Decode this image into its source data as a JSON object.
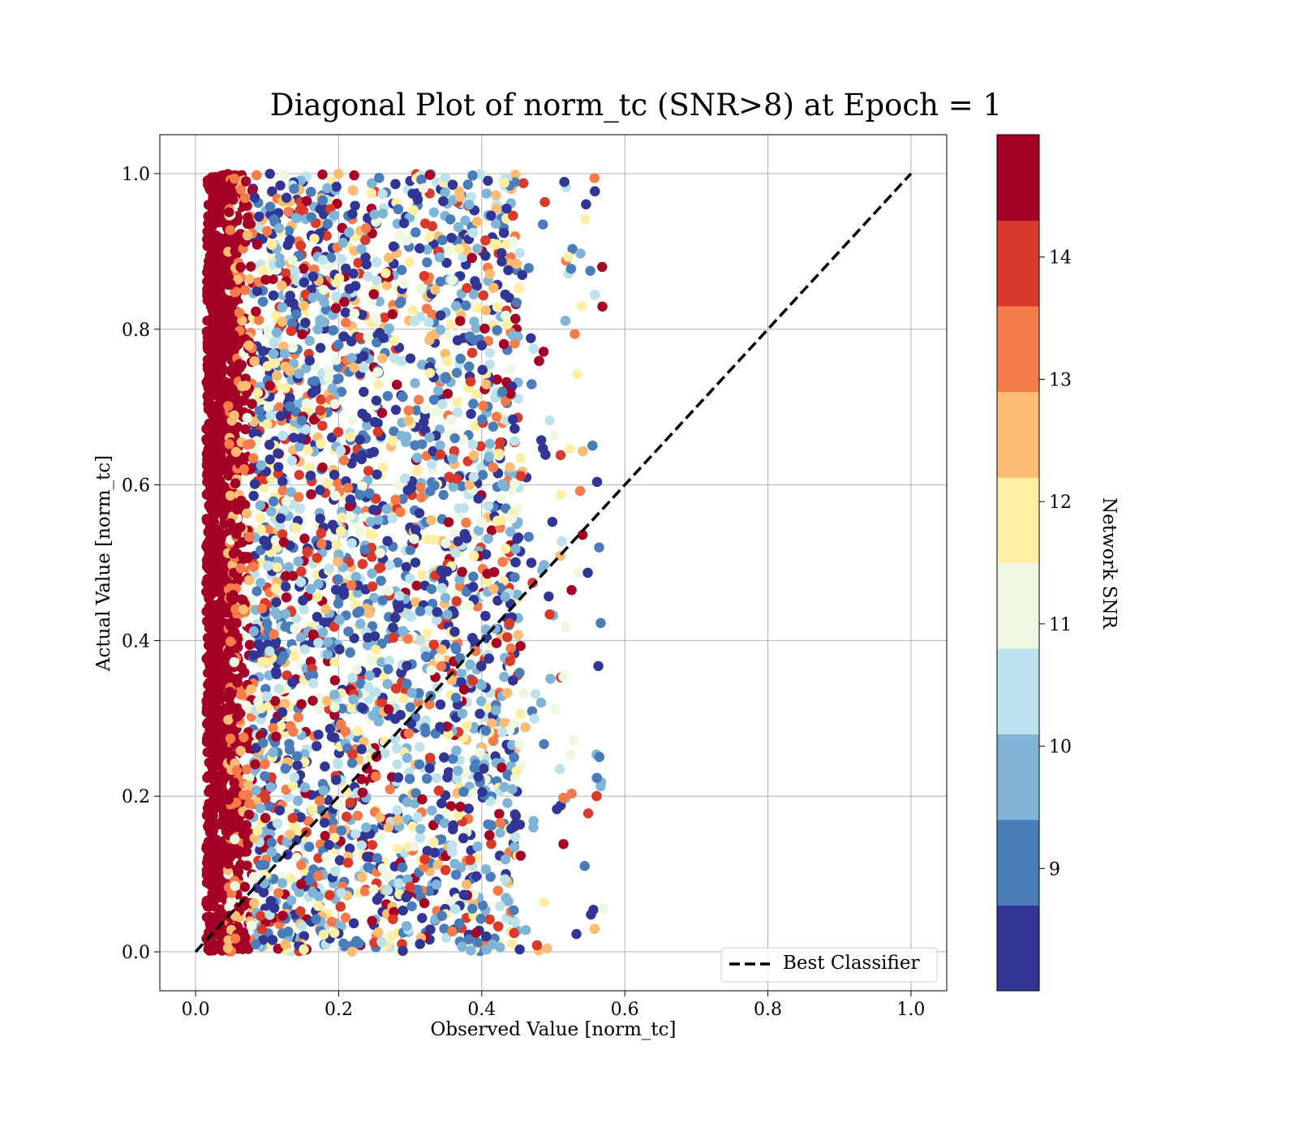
{
  "chart_data": {
    "type": "scatter",
    "title": "Diagonal Plot of norm_tc (SNR>8) at Epoch = 1",
    "xlabel": "Observed Value [norm_tc]",
    "ylabel": "Actual Value [norm_tc]",
    "xlim": [
      -0.05,
      1.05
    ],
    "ylim": [
      -0.05,
      1.05
    ],
    "xticks": [
      0.0,
      0.2,
      0.4,
      0.6,
      0.8,
      1.0
    ],
    "yticks": [
      0.0,
      0.2,
      0.4,
      0.6,
      0.8,
      1.0
    ],
    "xtick_labels": [
      "0.0",
      "0.2",
      "0.4",
      "0.6",
      "0.8",
      "1.0"
    ],
    "ytick_labels": [
      "0.0",
      "0.2",
      "0.4",
      "0.6",
      "0.8",
      "1.0"
    ],
    "grid": true,
    "legend": {
      "placement": "lower-right",
      "entries": [
        "Best Classifier"
      ]
    },
    "reference_line": {
      "name": "Best Classifier",
      "x": [
        0.0,
        1.0
      ],
      "y": [
        0.0,
        1.0
      ],
      "style": "dashed",
      "color": "#000000"
    },
    "scatter": {
      "observed_range": [
        0.015,
        0.58
      ],
      "actual_range": [
        0.0,
        1.0
      ],
      "dense_band_observed": [
        0.015,
        0.06
      ],
      "dense_band_snr": 14.8,
      "snr_range": [
        8,
        15
      ]
    },
    "colorbar": {
      "label": "Network SNR",
      "range": [
        8,
        15
      ],
      "ticks": [
        9,
        10,
        11,
        12,
        13,
        14
      ],
      "tick_labels": [
        "9",
        "10",
        "11",
        "12",
        "13",
        "14"
      ],
      "colors": [
        "#313695",
        "#4575b4",
        "#74add1",
        "#abd9e9",
        "#e0f3f8",
        "#fee090",
        "#fdae61",
        "#f46d43",
        "#d73027",
        "#a50026"
      ],
      "display_colors": [
        "#313695",
        "#4a7cb9",
        "#80b4d6",
        "#bde2ec",
        "#eef7e0",
        "#ffeea3",
        "#fdbc72",
        "#f57c4a",
        "#d93a2b",
        "#a50026"
      ]
    }
  }
}
